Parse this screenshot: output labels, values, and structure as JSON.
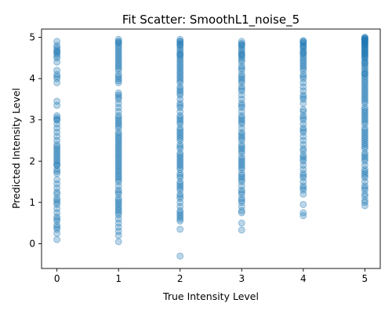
{
  "chart_data": {
    "type": "scatter",
    "title": "Fit Scatter: SmoothL1_noise_5",
    "xlabel": "True Intensity Level",
    "ylabel": "Predicted Intensity Level",
    "xlim": [
      -0.25,
      5.25
    ],
    "ylim": [
      -0.6,
      5.2
    ],
    "xticks": [
      "0",
      "1",
      "2",
      "3",
      "4",
      "5"
    ],
    "yticks": [
      "0",
      "1",
      "2",
      "3",
      "4",
      "5"
    ],
    "grid": false,
    "legend": "none",
    "marker_color": "#1f77b4",
    "marker_alpha": 0.3,
    "series": [
      {
        "x": [
          0,
          0,
          0,
          0,
          0,
          0,
          0,
          0,
          0,
          0,
          0,
          0,
          0,
          0,
          0,
          0,
          0,
          0,
          0,
          0,
          0,
          0,
          0,
          0,
          0,
          0,
          0,
          0,
          0,
          0,
          0,
          0,
          0,
          0,
          0,
          0,
          0,
          0,
          0,
          0,
          0,
          0,
          0,
          0,
          0,
          0,
          0,
          0,
          0,
          0,
          0,
          0,
          0,
          0,
          0,
          0,
          0,
          0,
          0,
          0
        ],
        "y": [
          0.1,
          0.25,
          0.35,
          0.4,
          0.55,
          0.65,
          0.75,
          0.85,
          0.95,
          1.0,
          1.1,
          1.2,
          1.35,
          1.45,
          1.55,
          1.7,
          1.8,
          1.9,
          1.95,
          2.0,
          2.05,
          2.1,
          2.2,
          2.25,
          2.3,
          2.35,
          2.5,
          2.6,
          2.8,
          2.9,
          3.0,
          3.05,
          3.1,
          3.35,
          3.45,
          3.9,
          4.0,
          4.05,
          4.2,
          4.4,
          4.5,
          4.55,
          4.6,
          4.65,
          4.7,
          4.75,
          4.8,
          4.9,
          2.15,
          1.75,
          1.25,
          0.45,
          2.7,
          3.0,
          4.65,
          1.9,
          2.4,
          4.1,
          0.6,
          1.05
        ]
      },
      {
        "x": [
          1,
          1,
          1,
          1,
          1,
          1,
          1,
          1,
          1,
          1,
          1,
          1,
          1,
          1,
          1,
          1,
          1,
          1,
          1,
          1,
          1,
          1,
          1,
          1,
          1,
          1,
          1,
          1,
          1,
          1,
          1,
          1,
          1,
          1,
          1,
          1,
          1,
          1,
          1,
          1,
          1,
          1,
          1,
          1,
          1,
          1,
          1,
          1,
          1,
          1,
          1,
          1,
          1,
          1,
          1,
          1,
          1,
          1,
          1,
          1,
          1,
          1,
          1,
          1,
          1,
          1,
          1,
          1,
          1,
          1,
          1,
          1,
          1,
          1,
          1,
          1,
          1,
          1,
          1,
          1
        ],
        "y": [
          0.05,
          0.2,
          0.3,
          0.4,
          0.5,
          0.6,
          0.7,
          0.75,
          0.8,
          0.9,
          0.95,
          1.0,
          1.05,
          1.1,
          1.2,
          1.3,
          1.4,
          1.5,
          1.55,
          1.6,
          1.65,
          1.7,
          1.8,
          1.85,
          1.9,
          1.95,
          2.0,
          2.05,
          2.1,
          2.15,
          2.2,
          2.25,
          2.3,
          2.4,
          2.45,
          2.5,
          2.55,
          2.6,
          2.7,
          2.8,
          2.85,
          2.9,
          3.0,
          3.05,
          3.1,
          3.2,
          3.3,
          3.4,
          3.5,
          3.6,
          3.65,
          3.9,
          3.95,
          4.0,
          4.05,
          4.1,
          4.2,
          4.25,
          4.3,
          4.35,
          4.45,
          4.5,
          4.55,
          4.6,
          4.65,
          4.7,
          4.75,
          4.8,
          4.85,
          4.9,
          4.95,
          0.85,
          1.25,
          1.75,
          2.35,
          2.65,
          2.95,
          3.55,
          4.4,
          4.88
        ]
      },
      {
        "x": [
          2,
          2,
          2,
          2,
          2,
          2,
          2,
          2,
          2,
          2,
          2,
          2,
          2,
          2,
          2,
          2,
          2,
          2,
          2,
          2,
          2,
          2,
          2,
          2,
          2,
          2,
          2,
          2,
          2,
          2,
          2,
          2,
          2,
          2,
          2,
          2,
          2,
          2,
          2,
          2,
          2,
          2,
          2,
          2,
          2,
          2,
          2,
          2,
          2,
          2,
          2,
          2,
          2,
          2,
          2,
          2,
          2,
          2,
          2,
          2,
          2,
          2,
          2,
          2,
          2,
          2,
          2,
          2,
          2,
          2,
          2,
          2,
          2,
          2,
          2,
          2,
          2,
          2,
          2,
          2
        ],
        "y": [
          -0.3,
          0.35,
          0.55,
          0.65,
          0.7,
          0.75,
          0.8,
          0.9,
          1.0,
          1.1,
          1.2,
          1.3,
          1.35,
          1.4,
          1.5,
          1.6,
          1.7,
          1.8,
          1.85,
          1.9,
          2.0,
          2.05,
          2.1,
          2.2,
          2.3,
          2.4,
          2.5,
          2.6,
          2.7,
          2.75,
          2.8,
          2.9,
          3.0,
          3.05,
          3.2,
          3.3,
          3.4,
          3.5,
          3.6,
          3.65,
          3.7,
          3.8,
          3.9,
          3.95,
          4.0,
          4.05,
          4.2,
          4.25,
          4.3,
          4.4,
          4.45,
          4.5,
          4.55,
          4.6,
          4.65,
          4.7,
          4.75,
          4.8,
          4.85,
          4.9,
          4.95,
          0.6,
          1.15,
          1.45,
          1.95,
          2.35,
          2.65,
          2.95,
          3.35,
          3.75,
          4.1,
          4.35,
          4.58,
          4.82,
          4.9,
          2.15,
          1.65,
          2.55,
          3.1,
          4.15
        ]
      },
      {
        "x": [
          3,
          3,
          3,
          3,
          3,
          3,
          3,
          3,
          3,
          3,
          3,
          3,
          3,
          3,
          3,
          3,
          3,
          3,
          3,
          3,
          3,
          3,
          3,
          3,
          3,
          3,
          3,
          3,
          3,
          3,
          3,
          3,
          3,
          3,
          3,
          3,
          3,
          3,
          3,
          3,
          3,
          3,
          3,
          3,
          3,
          3,
          3,
          3,
          3,
          3,
          3,
          3,
          3,
          3,
          3,
          3,
          3,
          3,
          3,
          3,
          3,
          3,
          3,
          3,
          3,
          3,
          3,
          3,
          3,
          3
        ],
        "y": [
          0.33,
          0.5,
          0.75,
          0.8,
          0.9,
          1.0,
          1.05,
          1.1,
          1.2,
          1.3,
          1.4,
          1.5,
          1.55,
          1.6,
          1.7,
          1.8,
          1.85,
          1.9,
          1.95,
          2.0,
          2.05,
          2.1,
          2.2,
          2.3,
          2.35,
          2.4,
          2.5,
          2.55,
          2.6,
          2.7,
          2.8,
          2.9,
          2.95,
          3.0,
          3.05,
          3.1,
          3.2,
          3.3,
          3.4,
          3.5,
          3.6,
          3.7,
          3.75,
          3.8,
          3.9,
          4.0,
          4.05,
          4.1,
          4.2,
          4.3,
          4.4,
          4.45,
          4.5,
          4.55,
          4.6,
          4.65,
          4.7,
          4.75,
          4.8,
          4.85,
          4.9,
          1.25,
          1.65,
          2.25,
          2.65,
          3.35,
          3.95,
          4.25,
          4.58,
          4.82
        ]
      },
      {
        "x": [
          4,
          4,
          4,
          4,
          4,
          4,
          4,
          4,
          4,
          4,
          4,
          4,
          4,
          4,
          4,
          4,
          4,
          4,
          4,
          4,
          4,
          4,
          4,
          4,
          4,
          4,
          4,
          4,
          4,
          4,
          4,
          4,
          4,
          4,
          4,
          4,
          4,
          4,
          4,
          4,
          4,
          4,
          4,
          4,
          4,
          4,
          4,
          4,
          4,
          4,
          4,
          4,
          4,
          4,
          4,
          4,
          4,
          4,
          4,
          4
        ],
        "y": [
          0.68,
          0.75,
          0.95,
          1.2,
          1.3,
          1.4,
          1.5,
          1.6,
          1.7,
          1.8,
          1.9,
          2.0,
          2.05,
          2.15,
          2.3,
          2.4,
          2.5,
          2.6,
          2.7,
          2.8,
          2.9,
          3.0,
          3.05,
          3.1,
          3.2,
          3.4,
          3.5,
          3.6,
          3.7,
          3.8,
          3.9,
          4.0,
          4.1,
          4.2,
          4.25,
          4.3,
          4.4,
          4.45,
          4.5,
          4.55,
          4.6,
          4.65,
          4.7,
          4.75,
          4.8,
          4.85,
          4.9,
          4.92,
          1.35,
          2.25,
          2.75,
          3.55,
          4.05,
          4.35,
          4.62,
          4.78,
          4.88,
          3.25,
          2.1,
          1.65
        ]
      },
      {
        "x": [
          5,
          5,
          5,
          5,
          5,
          5,
          5,
          5,
          5,
          5,
          5,
          5,
          5,
          5,
          5,
          5,
          5,
          5,
          5,
          5,
          5,
          5,
          5,
          5,
          5,
          5,
          5,
          5,
          5,
          5,
          5,
          5,
          5,
          5,
          5,
          5,
          5,
          5,
          5,
          5,
          5,
          5,
          5,
          5,
          5,
          5,
          5,
          5,
          5,
          5,
          5,
          5,
          5,
          5,
          5,
          5,
          5,
          5,
          5,
          5,
          5,
          5,
          5,
          5,
          5,
          5,
          5,
          5,
          5,
          5,
          5,
          5,
          5,
          5,
          5,
          5,
          5,
          5,
          5,
          5,
          5,
          5,
          5,
          5,
          5,
          5,
          5,
          5,
          5,
          5
        ],
        "y": [
          0.92,
          1.0,
          1.05,
          1.2,
          1.3,
          1.4,
          1.5,
          1.6,
          1.7,
          1.75,
          1.8,
          1.9,
          2.0,
          2.05,
          2.1,
          2.2,
          2.3,
          2.4,
          2.45,
          2.5,
          2.6,
          2.7,
          2.75,
          2.8,
          2.9,
          3.0,
          3.05,
          3.1,
          3.2,
          3.3,
          3.4,
          3.45,
          3.5,
          3.6,
          3.7,
          3.75,
          3.8,
          3.9,
          3.95,
          4.0,
          4.05,
          4.1,
          4.15,
          4.2,
          4.25,
          4.3,
          4.35,
          4.4,
          4.45,
          4.5,
          4.55,
          4.6,
          4.65,
          4.7,
          4.72,
          4.75,
          4.78,
          4.8,
          4.82,
          4.85,
          4.87,
          4.9,
          4.92,
          4.95,
          4.97,
          5.0,
          1.15,
          1.35,
          1.65,
          2.15,
          2.35,
          2.65,
          2.95,
          3.25,
          3.55,
          3.85,
          4.12,
          4.38,
          4.52,
          4.62,
          4.68,
          4.83,
          4.88,
          4.93,
          4.96,
          4.99,
          2.55,
          3.15,
          3.65,
          4.58
        ]
      }
    ]
  }
}
